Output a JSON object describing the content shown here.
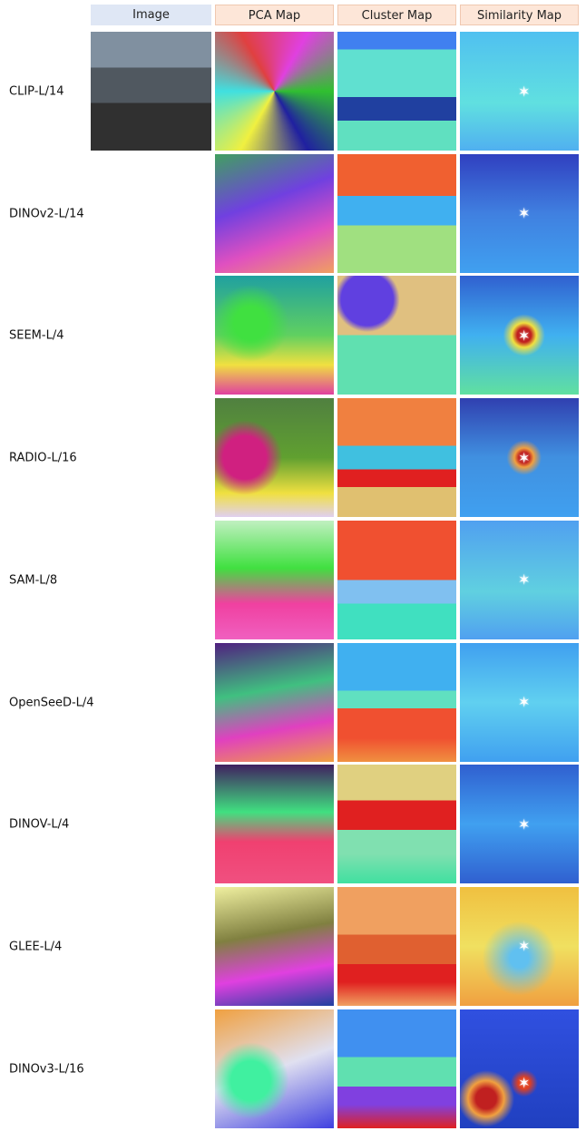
{
  "header": {
    "columns": [
      "Image",
      "PCA Map",
      "Cluster Map",
      "Similarity Map"
    ]
  },
  "rows": [
    "CLIP-L/14",
    "DINOv2-L/14",
    "SEEM-L/4",
    "RADIO-L/16",
    "SAM-L/8",
    "OpenSeeD-L/4",
    "DINOV-L/4",
    "GLEE-L/4",
    "DINOv3-L/16"
  ]
}
